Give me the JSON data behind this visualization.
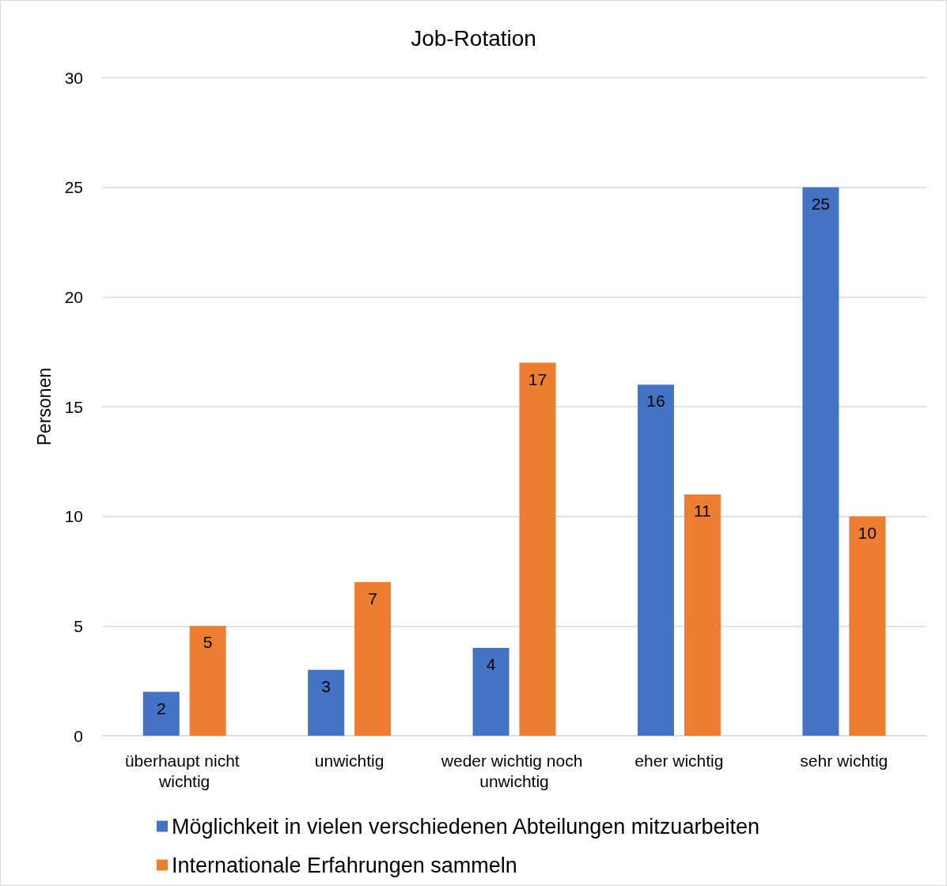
{
  "chart_data": {
    "type": "bar",
    "title": "Job-Rotation",
    "ylabel": "Personen",
    "categories": [
      "überhaupt nicht wichtig",
      "unwichtig",
      "weder wichtig noch unwichtig",
      "eher wichtig",
      "sehr wichtig"
    ],
    "series": [
      {
        "name": "Möglichkeit in vielen verschiedenen Abteilungen mitzuarbeiten",
        "color": "#4472c4",
        "values": [
          2,
          3,
          4,
          16,
          25
        ]
      },
      {
        "name": "Internationale Erfahrungen sammeln",
        "color": "#ed7d31",
        "values": [
          5,
          7,
          17,
          11,
          10
        ]
      }
    ],
    "ylim": [
      0,
      30
    ],
    "yticks": [
      0,
      5,
      10,
      15,
      20,
      25,
      30
    ],
    "grid": "y",
    "legend": "bottom",
    "data_labels": true
  }
}
